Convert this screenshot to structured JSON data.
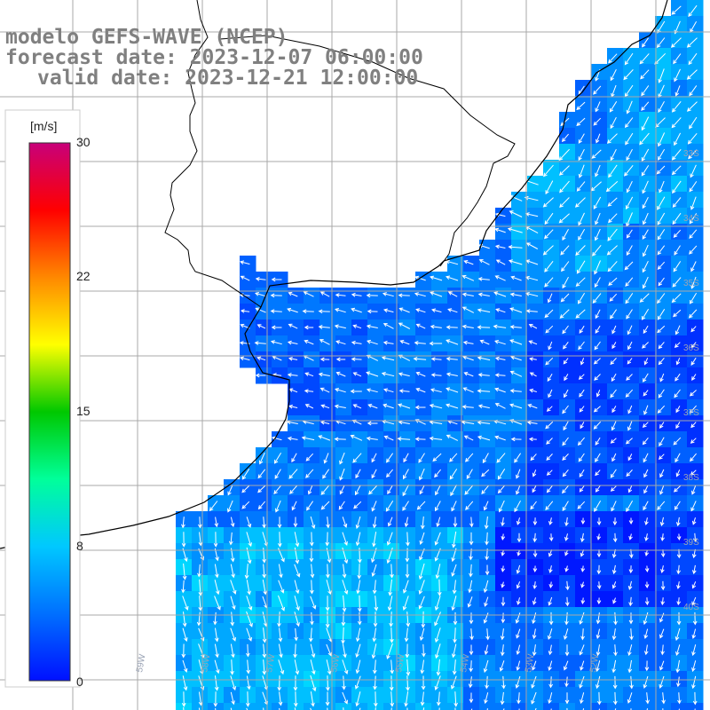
{
  "title": {
    "line1": "modelo GEFS-WAVE (NCEP)",
    "line2": "forecast date: 2023-12-07 06:00:00",
    "line3": "valid date: 2023-12-21 12:00:00"
  },
  "colorbar": {
    "unit": "[m/s]",
    "ticks": [
      "30",
      "22",
      "15",
      "8",
      "0"
    ],
    "stops": [
      "#0010ff",
      "#0070ff",
      "#00c8ff",
      "#00ff9a",
      "#00c800",
      "#ffff00",
      "#ff8800",
      "#ff0000",
      "#c8007a"
    ]
  },
  "grid": {
    "lat_labels": [
      "33S",
      "34S",
      "35S",
      "36S",
      "37S",
      "38S",
      "39S",
      "40S"
    ],
    "lon_labels": [
      "61W",
      "60W",
      "59W",
      "58W",
      "57W",
      "56W",
      "55W",
      "54W",
      "53W",
      "52W"
    ]
  },
  "field_colors": {
    "land": "#ffffff",
    "coast": "#000000",
    "grid_line": "#a8a8a8",
    "arrow": "#ffffff"
  }
}
